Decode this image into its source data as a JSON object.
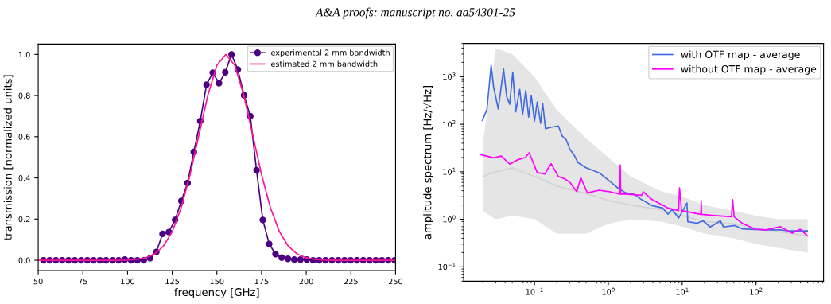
{
  "chart_data": [
    {
      "type": "line",
      "xlabel": "frequency [GHz]",
      "ylabel": "transmission [normalized units]",
      "annotations": [
        "A&A proofs: manuscript no. aa54301-25"
      ],
      "xlim": [
        50,
        250
      ],
      "ylim": [
        -0.05,
        1.05
      ],
      "xticks": [
        50,
        75,
        100,
        125,
        150,
        175,
        200,
        225,
        250
      ],
      "yticks": [
        {
          "value": 0,
          "label": "0.0"
        },
        0.2,
        0.4,
        0.6,
        0.8,
        {
          "value": 1,
          "label": "1.0"
        }
      ],
      "legend": "top right",
      "grid": false,
      "series": [
        {
          "name": "experimental 2 mm bandwidth",
          "color": "#4b0082",
          "marker": "circle",
          "x": [
            52.9,
            56.4,
            59.9,
            63.4,
            66.9,
            70.5,
            74.0,
            77.5,
            81.0,
            84.5,
            88.0,
            91.5,
            95.0,
            98.5,
            102.0,
            105.5,
            109.1,
            112.6,
            116.1,
            119.6,
            123.1,
            126.6,
            130.1,
            133.6,
            137.1,
            140.7,
            144.2,
            147.7,
            151.2,
            154.7,
            158.2,
            161.7,
            165.2,
            168.7,
            172.2,
            175.7,
            179.3,
            182.8,
            186.3,
            189.8,
            193.3,
            196.8,
            200.3,
            203.8,
            207.3,
            210.8,
            214.4,
            217.9,
            221.4,
            224.9,
            228.4,
            231.9,
            235.4,
            238.9,
            242.4,
            245.9,
            249.5
          ],
          "values": [
            0,
            0,
            0,
            0,
            0,
            0,
            0,
            0,
            0,
            0,
            0,
            0,
            0,
            0.003,
            0,
            0,
            0,
            0.01,
            0.04,
            0.128,
            0.137,
            0.196,
            0.288,
            0.375,
            0.526,
            0.676,
            0.853,
            0.911,
            0.86,
            0.913,
            1.0,
            0.926,
            0.801,
            0.7,
            0.437,
            0.196,
            0.079,
            0.03,
            0.013,
            0.007,
            0.003,
            0.003,
            0.003,
            0,
            0,
            0,
            0,
            0,
            0,
            0,
            0,
            0,
            0,
            0,
            0,
            0,
            0
          ]
        },
        {
          "name": "estimated 2 mm bandwidth",
          "color": "#ff1493",
          "x": [
            50,
            55,
            60,
            65,
            70,
            75,
            80,
            85,
            90,
            95,
            100,
            105,
            110,
            115,
            120,
            125,
            130,
            135,
            140,
            145,
            150,
            155,
            160,
            165,
            170,
            175,
            180,
            185,
            190,
            195,
            200,
            205,
            210,
            215,
            220,
            225,
            230,
            235,
            240,
            245,
            250
          ],
          "values": [
            0,
            0,
            0,
            0,
            0,
            0,
            0,
            0,
            0,
            0,
            0.001,
            0.004,
            0.012,
            0.03,
            0.068,
            0.139,
            0.254,
            0.416,
            0.611,
            0.803,
            0.947,
            1.0,
            0.947,
            0.803,
            0.611,
            0.416,
            0.254,
            0.139,
            0.068,
            0.03,
            0.012,
            0.004,
            0.001,
            0,
            0,
            0,
            0,
            0,
            0,
            0,
            0
          ]
        }
      ]
    },
    {
      "type": "line",
      "ylabel": "amplitude spectrum [Hz/√Hz]",
      "log": "xy",
      "xlim": [
        0.011,
        820
      ],
      "ylim": [
        0.05,
        5000
      ],
      "xticks": [
        {
          "value": 0.1,
          "label": "10$^{−1}$"
        },
        {
          "value": 1,
          "label": "10$^{0}$"
        },
        {
          "value": 10,
          "label": "10$^{1}$"
        },
        {
          "value": 100,
          "label": "10$^{2}$"
        }
      ],
      "yticks": [
        {
          "value": 0.1,
          "label": "10$^{−1}$"
        },
        {
          "value": 1,
          "label": "10$^{0}$"
        },
        {
          "value": 10,
          "label": "10$^{1}$"
        },
        {
          "value": 100,
          "label": "10$^{2}$"
        },
        {
          "value": 1000,
          "label": "10$^{3}$"
        }
      ],
      "legend": "top right",
      "grid": false,
      "series": [
        {
          "color": "#d3d3d3",
          "x": [
            0.02,
            0.03,
            0.05,
            0.1,
            0.2,
            0.5,
            1,
            2,
            5,
            10,
            20,
            50,
            100,
            200,
            500
          ],
          "values": [
            8,
            10,
            12,
            8,
            5,
            3.5,
            2.5,
            2,
            1.6,
            1.2,
            0.9,
            0.8,
            0.65,
            0.55,
            0.45
          ],
          "lower": [
            1.5,
            1,
            1.2,
            1,
            0.5,
            0.5,
            0.8,
            1,
            0.9,
            0.7,
            0.5,
            0.4,
            0.3,
            0.25,
            0.2
          ],
          "upper": [
            40,
            4000,
            3000,
            1000,
            200,
            50,
            20,
            8,
            4,
            3,
            2,
            1.5,
            1.2,
            1,
            1
          ]
        },
        {
          "name": "with OTF map - average",
          "color": "#4169e1",
          "x": [
            0.0197,
            0.0227,
            0.0259,
            0.0279,
            0.0323,
            0.0381,
            0.0421,
            0.0461,
            0.0508,
            0.0557,
            0.0631,
            0.069,
            0.0762,
            0.0834,
            0.0906,
            0.1,
            0.109,
            0.121,
            0.129,
            0.141,
            0.171,
            0.21,
            0.238,
            0.269,
            0.304,
            0.344,
            0.39,
            0.499,
            0.753,
            1.05,
            1.34,
            1.72,
            2.2,
            2.82,
            3.92,
            5.45,
            6.43,
            7.28,
            8.94,
            11.6,
            11.9,
            15.9,
            19.1,
            24.0,
            32.9,
            36.3,
            51.8,
            64.6,
            97.7,
            136,
            214,
            285,
            495
          ],
          "values": [
            120,
            204,
            1740,
            616,
            209,
            1440,
            378,
            263,
            1250,
            182,
            540,
            159,
            514,
            141,
            398,
            117,
            295,
            105,
            275,
            81,
            87,
            92,
            56,
            47,
            29,
            22.5,
            15.5,
            12.2,
            9.5,
            6.3,
            4.6,
            3.6,
            3.4,
            2.6,
            1.94,
            1.73,
            1.28,
            1.63,
            1.06,
            2.21,
            0.89,
            0.83,
            0.93,
            0.69,
            0.93,
            0.69,
            0.74,
            0.63,
            0.61,
            0.6,
            0.6,
            0.57,
            0.57
          ]
        },
        {
          "name": "without OTF map - average",
          "color": "#ff00ff",
          "x": [
            0.0184,
            0.0279,
            0.0356,
            0.0463,
            0.0585,
            0.075,
            0.0848,
            0.109,
            0.139,
            0.151,
            0.168,
            0.21,
            0.258,
            0.304,
            0.374,
            0.424,
            0.52,
            0.753,
            1.05,
            1.43,
            1.45,
            1.47,
            1.72,
            2.82,
            2.96,
            3.92,
            6.43,
            8.94,
            9.2,
            9.8,
            14.7,
            17.9,
            18.1,
            18.3,
            27.5,
            46.5,
            48.2,
            50.5,
            64.6,
            97.7,
            136,
            214,
            309,
            397,
            495
          ],
          "values": [
            23.1,
            19.6,
            21.4,
            14.5,
            17.8,
            19.9,
            25.1,
            9.6,
            9.0,
            11.5,
            14.8,
            8.0,
            7.1,
            5.9,
            3.8,
            7.5,
            3.6,
            4.1,
            3.8,
            3.4,
            13.9,
            3.4,
            3.4,
            3.2,
            3.8,
            2.6,
            1.73,
            1.53,
            4.6,
            1.53,
            1.35,
            1.27,
            2.34,
            1.27,
            1.2,
            1.13,
            2.6,
            1.13,
            0.83,
            0.62,
            0.6,
            0.7,
            0.51,
            0.62,
            0.45
          ]
        }
      ]
    }
  ]
}
